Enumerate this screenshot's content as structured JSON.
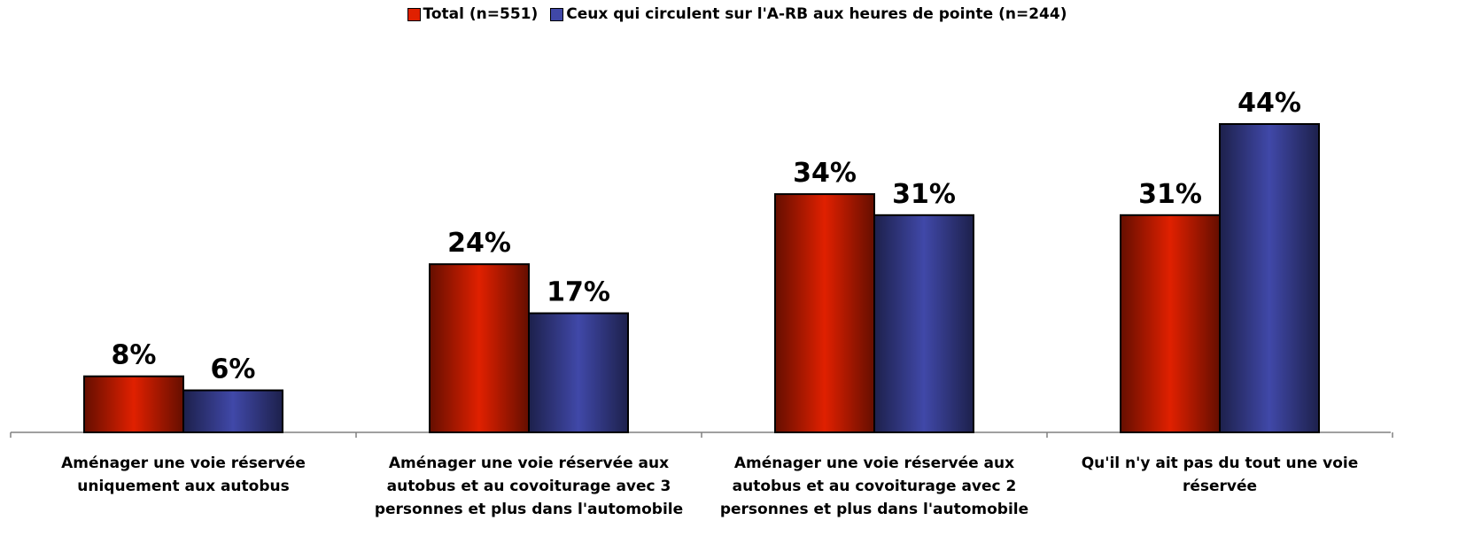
{
  "chart_data": {
    "type": "bar",
    "categories": [
      "Aménager une voie réservée uniquement aux autobus",
      "Aménager une voie réservée aux autobus et au covoiturage avec 3 personnes et plus dans l'automobile",
      "Aménager une voie réservée aux autobus et au covoiturage avec 2 personnes et plus dans l'automobile",
      "Qu'il n'y ait pas du tout une voie réservée"
    ],
    "series": [
      {
        "name": "Total (n=551)",
        "color": "#e02000",
        "values": [
          8,
          24,
          34,
          31
        ],
        "value_labels": [
          "8%",
          "24%",
          "34%",
          "31%"
        ]
      },
      {
        "name": "Ceux qui circulent sur l'A-RB aux heures de pointe (n=244)",
        "color": "#4048a8",
        "values": [
          6,
          17,
          31,
          44
        ],
        "value_labels": [
          "6%",
          "17%",
          "31%",
          "44%"
        ]
      }
    ],
    "legend": "top"
  }
}
